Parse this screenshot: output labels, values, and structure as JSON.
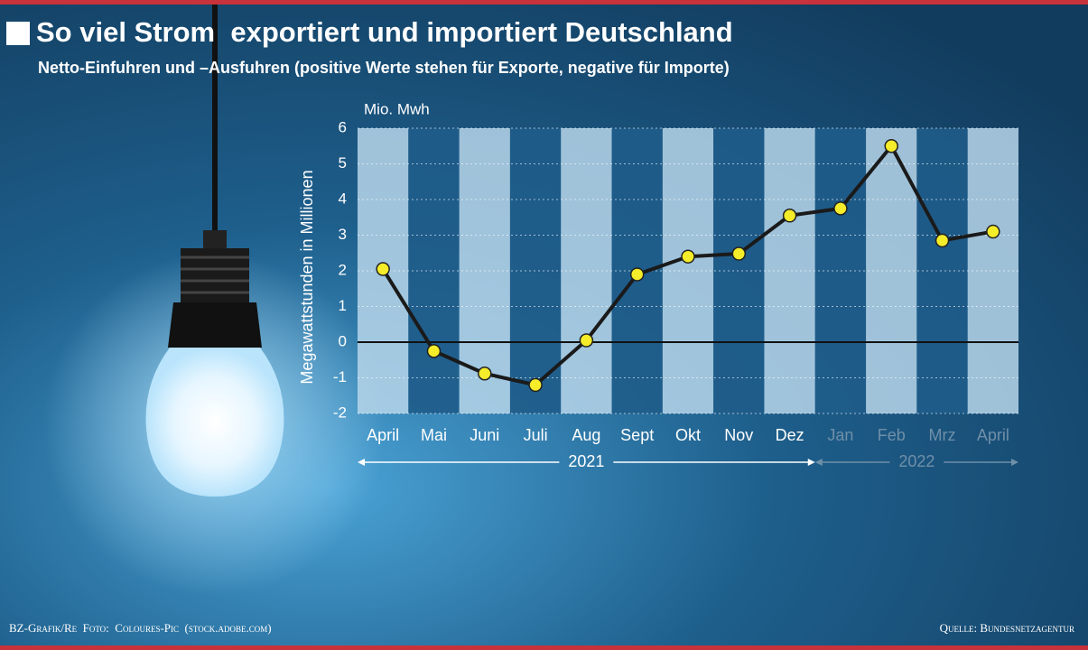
{
  "chart_data": {
    "type": "line",
    "title": "So viel Strom  exportiert und importiert Deutschland",
    "subtitle": "Netto-Einfuhren und –Ausfuhren (positive Werte stehen für Exporte, negative für Importe)",
    "unit_label": "Mio. Mwh",
    "y_label": "Megawattstunden in Millionen",
    "categories": [
      "April",
      "Mai",
      "Juni",
      "Juli",
      "Aug",
      "Sept",
      "Okt",
      "Nov",
      "Dez",
      "Jan",
      "Feb",
      "Mrz",
      "April"
    ],
    "year_labels": [
      "2021",
      "2022"
    ],
    "values": [
      2.05,
      -0.25,
      -0.88,
      -1.2,
      0.05,
      1.9,
      2.4,
      2.48,
      3.55,
      3.75,
      5.5,
      2.85,
      3.1
    ],
    "color": "#1a1a1a",
    "marker_color": "#f5ec2a",
    "ylim": [
      -2,
      6
    ],
    "yticks": [
      -2,
      -1,
      0,
      1,
      2,
      3,
      4,
      5,
      6
    ],
    "grid": true,
    "credit": "BZ-Grafik/Re  Foto:  Coloures-Pic  (stock.adobe.com)",
    "source": "Quelle: Bundesnetzagentur"
  }
}
